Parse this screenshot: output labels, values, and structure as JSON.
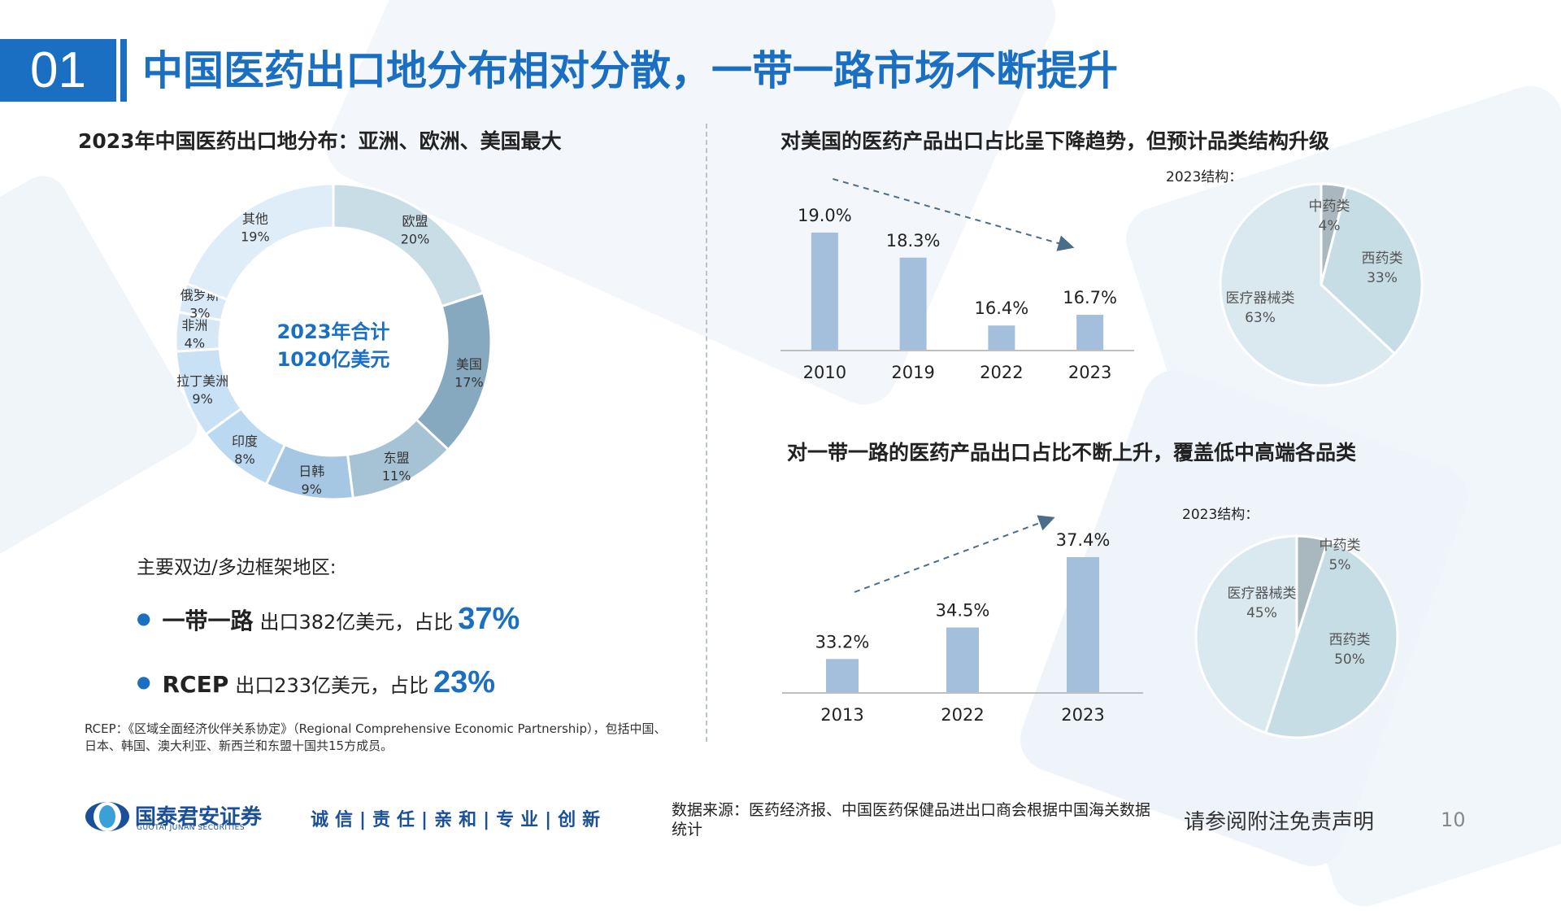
{
  "header": {
    "number": "01",
    "title": "中国医药出口地分布相对分散，一带一路市场不断提升"
  },
  "left_panel": {
    "title": "2023年中国医药出口地分布：亚洲、欧洲、美国最大",
    "donut_center_line1": "2023年合计",
    "donut_center_line2": "1020亿美元"
  },
  "frameworks": {
    "title": "主要双边/多边框架地区:",
    "items": [
      {
        "name": "一带一路",
        "text": "出口382亿美元，占比",
        "pct": "37%"
      },
      {
        "name": "RCEP",
        "text": "出口233亿美元，占比",
        "pct": "23%"
      }
    ]
  },
  "footnote": "RCEP：《区域全面经济伙伴关系协定》（Regional Comprehensive Economic Partnership），包括中国、日本、韩国、澳大利亚、新西兰和东盟十国共15方成员。",
  "us_panel": {
    "title": "对美国的医药产品出口占比呈下降趋势，但预计品类结构升级"
  },
  "br_panel": {
    "title": "对一带一路的医药产品出口占比不断上升，覆盖低中高端各品类"
  },
  "footer": {
    "brand_cn": "国泰君安证券",
    "brand_en": "GUOTAI JUNAN SECURITIES",
    "slogan": "诚信|责任|亲和|专业|创新",
    "source": "数据来源：医药经济报、中国医药保健品进出口商会根据中国海关数据统计",
    "disclaimer": "请参阅附注免责声明",
    "page_number": "10"
  },
  "chart_data": [
    {
      "id": "destinations_donut",
      "type": "pie",
      "categories": [
        "欧盟",
        "美国",
        "东盟",
        "日韩",
        "印度",
        "拉丁美洲",
        "非洲",
        "俄罗斯",
        "其他"
      ],
      "values": [
        20,
        17,
        11,
        9,
        8,
        9,
        4,
        3,
        19
      ],
      "value_labels": [
        "20%",
        "17%",
        "11%",
        "9%",
        "8%",
        "9%",
        "4%",
        "3%",
        "19%"
      ],
      "colors": [
        "#c9dde7",
        "#86a9c0",
        "#a6c3d6",
        "#a6c7e4",
        "#bad8ef",
        "#c9e1f4",
        "#d6e8f6",
        "#d9e9f7",
        "#dfedf9"
      ]
    },
    {
      "id": "us_share_bar",
      "type": "bar",
      "categories": [
        "2010",
        "2019",
        "2022",
        "2023"
      ],
      "values": [
        19.0,
        18.3,
        16.4,
        16.7
      ],
      "value_labels": [
        "19.0%",
        "18.3%",
        "16.4%",
        "16.7%"
      ],
      "color": "#a3bfdc"
    },
    {
      "id": "us_structure_pie",
      "type": "pie",
      "title": "2023结构：",
      "categories": [
        "中药类",
        "西药类",
        "医疗器械类"
      ],
      "values": [
        4,
        33,
        63
      ],
      "value_labels": [
        "4%",
        "33%",
        "63%"
      ],
      "colors": [
        "#a9b7bf",
        "#c7dde6",
        "#d9e9ef"
      ]
    },
    {
      "id": "br_share_bar",
      "type": "bar",
      "categories": [
        "2013",
        "2022",
        "2023"
      ],
      "values": [
        33.2,
        34.5,
        37.4
      ],
      "value_labels": [
        "33.2%",
        "34.5%",
        "37.4%"
      ],
      "color": "#a3bfdc"
    },
    {
      "id": "br_structure_pie",
      "type": "pie",
      "title": "2023结构：",
      "categories": [
        "中药类",
        "西药类",
        "医疗器械类"
      ],
      "values": [
        5,
        50,
        45
      ],
      "value_labels": [
        "5%",
        "50%",
        "45%"
      ],
      "colors": [
        "#a9b7bf",
        "#c7dde6",
        "#d9e9ef"
      ]
    }
  ]
}
